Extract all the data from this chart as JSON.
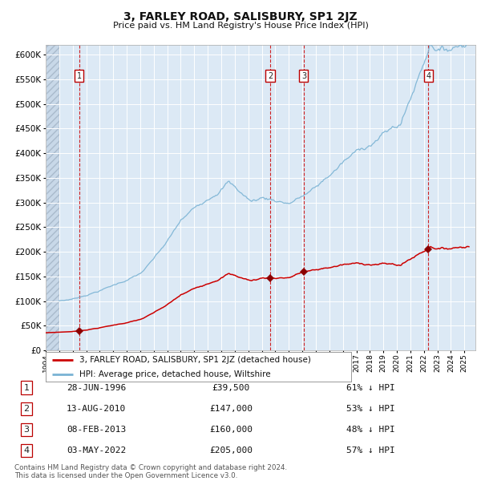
{
  "title": "3, FARLEY ROAD, SALISBURY, SP1 2JZ",
  "subtitle": "Price paid vs. HM Land Registry's House Price Index (HPI)",
  "title_fontsize": 10,
  "subtitle_fontsize": 8,
  "plot_bg_color": "#dce9f5",
  "grid_color": "#ffffff",
  "hpi_color": "#7ab3d4",
  "price_color": "#cc0000",
  "marker_color": "#8b0000",
  "vline_color": "#cc0000",
  "ylim": [
    0,
    620000
  ],
  "xlim_start": 1994.0,
  "xlim_end": 2025.8,
  "legend_entry1": "3, FARLEY ROAD, SALISBURY, SP1 2JZ (detached house)",
  "legend_entry2": "HPI: Average price, detached house, Wiltshire",
  "purchases": [
    {
      "num": 1,
      "date_str": "28-JUN-1996",
      "year": 1996.49,
      "price": 39500,
      "label": "£39,500",
      "pct": "61% ↓ HPI"
    },
    {
      "num": 2,
      "date_str": "13-AUG-2010",
      "year": 2010.62,
      "price": 147000,
      "label": "£147,000",
      "pct": "53% ↓ HPI"
    },
    {
      "num": 3,
      "date_str": "08-FEB-2013",
      "year": 2013.11,
      "price": 160000,
      "label": "£160,000",
      "pct": "48% ↓ HPI"
    },
    {
      "num": 4,
      "date_str": "03-MAY-2022",
      "year": 2022.33,
      "price": 205000,
      "label": "£205,000",
      "pct": "57% ↓ HPI"
    }
  ],
  "footnote1": "Contains HM Land Registry data © Crown copyright and database right 2024.",
  "footnote2": "This data is licensed under the Open Government Licence v3.0."
}
